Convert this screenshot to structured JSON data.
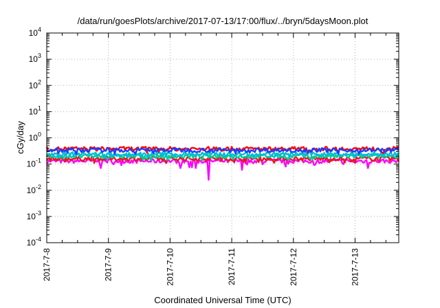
{
  "chart_data": {
    "type": "line",
    "title": "/data/run/goesPlots/archive/2017-07-13/17:00/flux/../bryn/5daysMoon.plot",
    "xlabel": "Coordinated Universal Time (UTC)",
    "ylabel": "cGy/day",
    "yscale": "log",
    "ylim": [
      0.0001,
      10000
    ],
    "xlim": [
      "2017-07-08 00:00",
      "2017-07-13 17:00"
    ],
    "grid": true,
    "x_ticks": [
      "2017-7-8",
      "2017-7-9",
      "2017-7-10",
      "2017-7-11",
      "2017-7-12",
      "2017-7-13"
    ],
    "y_ticks": [
      {
        "base": "10",
        "exp": "-4",
        "value": 0.0001
      },
      {
        "base": "10",
        "exp": "-3",
        "value": 0.001
      },
      {
        "base": "10",
        "exp": "-2",
        "value": 0.01
      },
      {
        "base": "10",
        "exp": "-1",
        "value": 0.1
      },
      {
        "base": "10",
        "exp": "0",
        "value": 1
      },
      {
        "base": "10",
        "exp": "1",
        "value": 10
      },
      {
        "base": "10",
        "exp": "2",
        "value": 100
      },
      {
        "base": "10",
        "exp": "3",
        "value": 1000
      },
      {
        "base": "10",
        "exp": "4",
        "value": 10000
      }
    ],
    "series": [
      {
        "color": "#ff00ff",
        "level": 0.13,
        "dips": [
          [
            "2017-07-08 21:00",
            0.07
          ],
          [
            "2017-07-10 04:00",
            0.07
          ],
          [
            "2017-07-10 07:30",
            0.075
          ],
          [
            "2017-07-10 08:30",
            0.075
          ],
          [
            "2017-07-10 10:00",
            0.07
          ],
          [
            "2017-07-10 15:00",
            0.025
          ],
          [
            "2017-07-11 04:00",
            0.06
          ],
          [
            "2017-07-11 21:00",
            0.08
          ],
          [
            "2017-07-13 05:00",
            0.07
          ]
        ]
      },
      {
        "color": "#e41a1c",
        "level": 0.16,
        "dips": []
      },
      {
        "color": "#00cc99",
        "level": 0.2,
        "dips": []
      },
      {
        "color": "#00bcd4",
        "level": 0.24,
        "dips": []
      },
      {
        "color": "#ff0000",
        "level": 0.38,
        "dips": []
      },
      {
        "color": "#1f3cff",
        "level": 0.34,
        "dips": []
      }
    ]
  }
}
